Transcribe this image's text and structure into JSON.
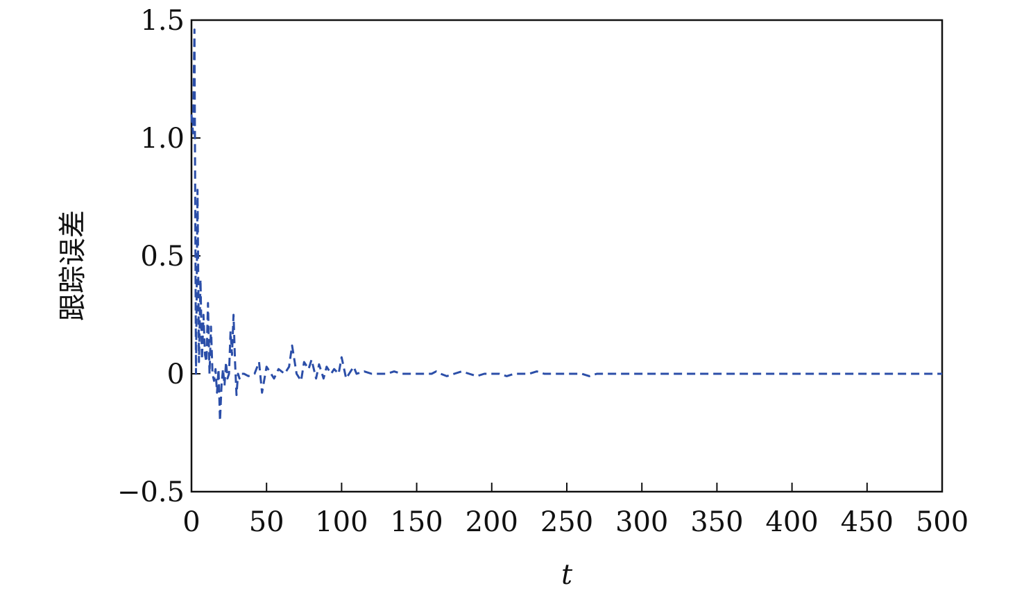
{
  "chart_data": {
    "type": "line",
    "title": "",
    "xlabel": "t",
    "ylabel": "跟踪误差",
    "xlim": [
      0,
      500
    ],
    "ylim": [
      -0.5,
      1.5
    ],
    "xticks": [
      0,
      50,
      100,
      150,
      200,
      250,
      300,
      350,
      400,
      450,
      500
    ],
    "xtick_labels": [
      "0",
      "50",
      "100",
      "150",
      "200",
      "250",
      "300",
      "350",
      "400",
      "450",
      "500"
    ],
    "yticks": [
      -0.5,
      0,
      0.5,
      1.0,
      1.5
    ],
    "ytick_labels": [
      "−0.5",
      "0",
      "0.5",
      "1.0",
      "1.5"
    ],
    "grid": false,
    "legend": "none",
    "series": [
      {
        "color": "#2b4ea8",
        "line_style": "dashed",
        "x": [
          0,
          1,
          2,
          3,
          4,
          5,
          6,
          7,
          8,
          9,
          10,
          11,
          12,
          13,
          14,
          15,
          16,
          17,
          18,
          19,
          20,
          21,
          22,
          23,
          24,
          25,
          26,
          27,
          28,
          29,
          30,
          31,
          32,
          33,
          35,
          38,
          42,
          45,
          47,
          50,
          55,
          58,
          62,
          65,
          67,
          70,
          73,
          75,
          78,
          80,
          83,
          85,
          88,
          90,
          93,
          95,
          98,
          100,
          103,
          105,
          108,
          110,
          115,
          120,
          125,
          130,
          135,
          140,
          145,
          150,
          155,
          160,
          163,
          166,
          170,
          175,
          180,
          185,
          190,
          195,
          200,
          205,
          210,
          215,
          220,
          225,
          230,
          235,
          240,
          245,
          250,
          255,
          260,
          265,
          270,
          275,
          280,
          285,
          290,
          295,
          300,
          305,
          310,
          315,
          320,
          325,
          330,
          335,
          340,
          345,
          350,
          355,
          360,
          365,
          370,
          375,
          380,
          385,
          390,
          395,
          400,
          410,
          420,
          430,
          440,
          450,
          460,
          470,
          480,
          490,
          500
        ],
        "y": [
          1.1,
          1.02,
          1.46,
          0.0,
          0.78,
          0.05,
          0.4,
          0.06,
          0.25,
          0.08,
          0.05,
          0.3,
          0.0,
          0.2,
          0.0,
          -0.03,
          0.02,
          -0.08,
          0.02,
          -0.2,
          -0.05,
          0.02,
          -0.05,
          0.05,
          -0.02,
          0.0,
          0.18,
          0.08,
          0.25,
          0.05,
          -0.09,
          0.0,
          -0.02,
          0.0,
          0.0,
          -0.01,
          0.0,
          0.05,
          -0.08,
          0.03,
          -0.02,
          0.02,
          0.0,
          0.03,
          0.12,
          0.0,
          -0.03,
          0.05,
          0.02,
          0.06,
          -0.02,
          0.04,
          -0.02,
          0.03,
          0.0,
          0.02,
          0.0,
          0.07,
          -0.02,
          0.0,
          0.03,
          0.0,
          0.01,
          0.0,
          0.0,
          0.0,
          0.01,
          0.0,
          0.0,
          0.0,
          0.0,
          0.0,
          0.01,
          0.0,
          -0.01,
          0.0,
          0.01,
          0.0,
          -0.01,
          0.0,
          0.0,
          0.0,
          -0.01,
          0.0,
          0.0,
          0.0,
          0.01,
          0.0,
          0.0,
          0.0,
          0.0,
          0.0,
          0.0,
          -0.01,
          0.0,
          0.0,
          0.0,
          0.0,
          0.0,
          0.0,
          0.0,
          0.0,
          0.0,
          0.0,
          0.0,
          0.0,
          0.0,
          0.0,
          0.0,
          0.0,
          0.0,
          0.0,
          0.0,
          0.0,
          0.0,
          0.0,
          0.0,
          0.0,
          0.0,
          0.0,
          0.0,
          0.0,
          0.0,
          0.0,
          0.0,
          0.0,
          0.0,
          0.0,
          0.0,
          0.0,
          0.0
        ]
      }
    ]
  }
}
